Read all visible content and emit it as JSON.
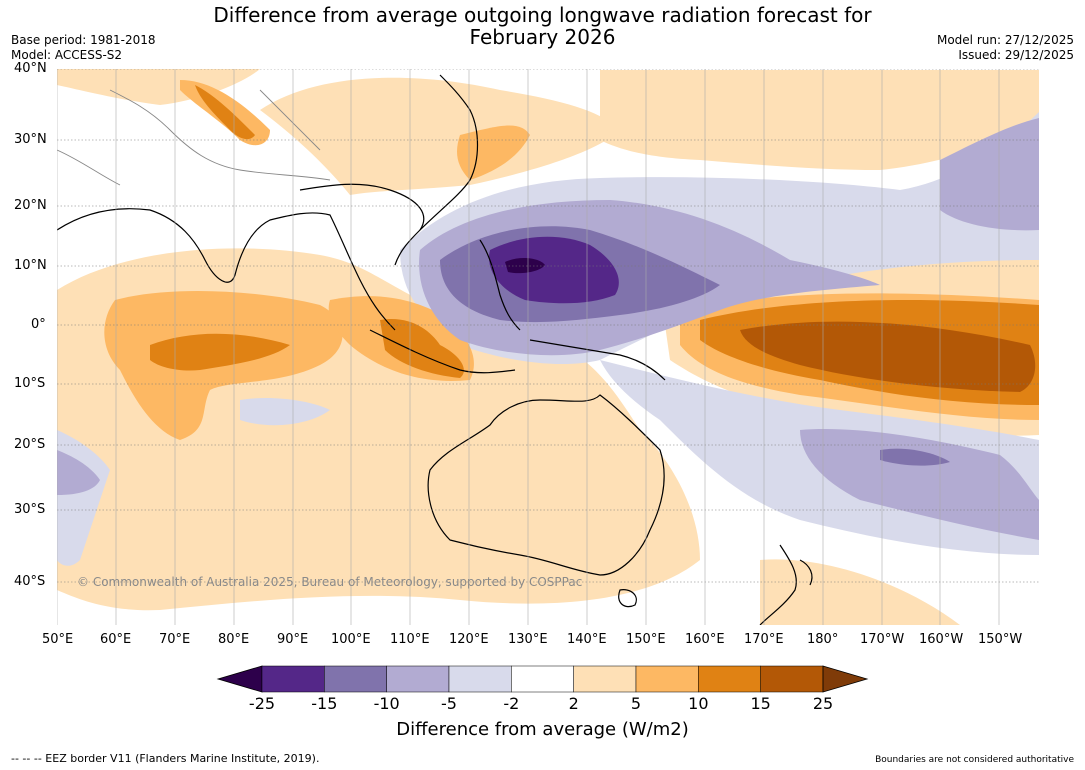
{
  "header": {
    "title_line1": "Difference from average outgoing longwave radiation forecast for",
    "title_line2": "February 2026",
    "base_period": "Base period: 1981-2018",
    "model": "Model: ACCESS-S2",
    "model_run": "Model run: 27/12/2025",
    "issued": "Issued: 29/12/2025"
  },
  "map": {
    "lat_labels": [
      "40°N",
      "30°N",
      "20°N",
      "10°N",
      "0°",
      "10°S",
      "20°S",
      "30°S",
      "40°S"
    ],
    "lon_labels": [
      "50°E",
      "60°E",
      "70°E",
      "80°E",
      "90°E",
      "100°E",
      "110°E",
      "120°E",
      "130°E",
      "140°E",
      "150°E",
      "160°E",
      "170°E",
      "180°",
      "170°W",
      "160°W",
      "150°W"
    ],
    "copyright": "© Commonwealth of Australia 2025, Bureau of Meteorology, supported by COSPPac",
    "anomaly_fields": [
      {
        "category": "-15 to -25",
        "description": "Strongest negative anomaly over the Philippine Sea / western Pacific near 10°N"
      },
      {
        "category": "15 to 25",
        "description": "Strong positive anomaly along the equatorial central Pacific"
      },
      {
        "category": "5 to 15",
        "description": "Positive anomaly over the equatorial Indian Ocean and Indonesia"
      }
    ]
  },
  "colorbar": {
    "ticks": [
      "-25",
      "-15",
      "-10",
      "-5",
      "-2",
      "2",
      "5",
      "10",
      "15",
      "25"
    ],
    "colors": [
      "#2d004b",
      "#542788",
      "#8073ac",
      "#b2abd2",
      "#d8daeb",
      "#ffffff",
      "#fee0b6",
      "#fdb863",
      "#e08214",
      "#b35806",
      "#7f3b08"
    ],
    "label": "Difference from average (W/m2)"
  },
  "footer": {
    "eez_legend": "-- -- -- EEZ border V11 (Flanders Marine Institute, 2019).",
    "disclaimer": "Boundaries are not considered authoritative"
  }
}
